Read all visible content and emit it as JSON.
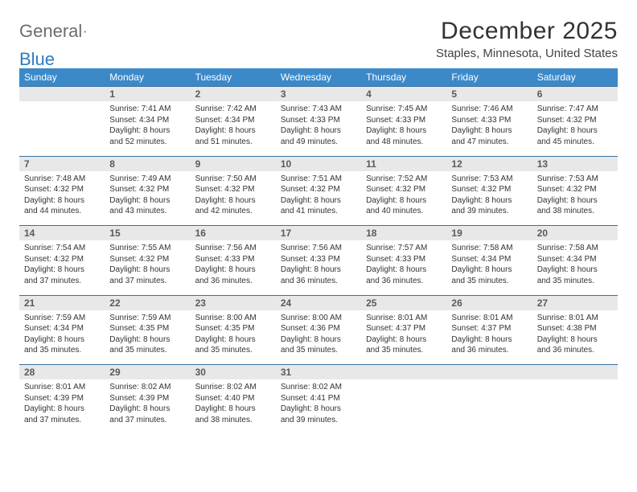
{
  "brand": {
    "word1": "General",
    "word2": "Blue"
  },
  "title": "December 2025",
  "location": "Staples, Minnesota, United States",
  "colors": {
    "header_bg": "#3b89c9",
    "daynum_bg": "#e8e8e8",
    "rule": "#3b6fa0"
  },
  "dow": [
    "Sunday",
    "Monday",
    "Tuesday",
    "Wednesday",
    "Thursday",
    "Friday",
    "Saturday"
  ],
  "weeks": [
    [
      null,
      {
        "n": "1",
        "sr": "Sunrise: 7:41 AM",
        "ss": "Sunset: 4:34 PM",
        "dl": "Daylight: 8 hours and 52 minutes."
      },
      {
        "n": "2",
        "sr": "Sunrise: 7:42 AM",
        "ss": "Sunset: 4:34 PM",
        "dl": "Daylight: 8 hours and 51 minutes."
      },
      {
        "n": "3",
        "sr": "Sunrise: 7:43 AM",
        "ss": "Sunset: 4:33 PM",
        "dl": "Daylight: 8 hours and 49 minutes."
      },
      {
        "n": "4",
        "sr": "Sunrise: 7:45 AM",
        "ss": "Sunset: 4:33 PM",
        "dl": "Daylight: 8 hours and 48 minutes."
      },
      {
        "n": "5",
        "sr": "Sunrise: 7:46 AM",
        "ss": "Sunset: 4:33 PM",
        "dl": "Daylight: 8 hours and 47 minutes."
      },
      {
        "n": "6",
        "sr": "Sunrise: 7:47 AM",
        "ss": "Sunset: 4:32 PM",
        "dl": "Daylight: 8 hours and 45 minutes."
      }
    ],
    [
      {
        "n": "7",
        "sr": "Sunrise: 7:48 AM",
        "ss": "Sunset: 4:32 PM",
        "dl": "Daylight: 8 hours and 44 minutes."
      },
      {
        "n": "8",
        "sr": "Sunrise: 7:49 AM",
        "ss": "Sunset: 4:32 PM",
        "dl": "Daylight: 8 hours and 43 minutes."
      },
      {
        "n": "9",
        "sr": "Sunrise: 7:50 AM",
        "ss": "Sunset: 4:32 PM",
        "dl": "Daylight: 8 hours and 42 minutes."
      },
      {
        "n": "10",
        "sr": "Sunrise: 7:51 AM",
        "ss": "Sunset: 4:32 PM",
        "dl": "Daylight: 8 hours and 41 minutes."
      },
      {
        "n": "11",
        "sr": "Sunrise: 7:52 AM",
        "ss": "Sunset: 4:32 PM",
        "dl": "Daylight: 8 hours and 40 minutes."
      },
      {
        "n": "12",
        "sr": "Sunrise: 7:53 AM",
        "ss": "Sunset: 4:32 PM",
        "dl": "Daylight: 8 hours and 39 minutes."
      },
      {
        "n": "13",
        "sr": "Sunrise: 7:53 AM",
        "ss": "Sunset: 4:32 PM",
        "dl": "Daylight: 8 hours and 38 minutes."
      }
    ],
    [
      {
        "n": "14",
        "sr": "Sunrise: 7:54 AM",
        "ss": "Sunset: 4:32 PM",
        "dl": "Daylight: 8 hours and 37 minutes."
      },
      {
        "n": "15",
        "sr": "Sunrise: 7:55 AM",
        "ss": "Sunset: 4:32 PM",
        "dl": "Daylight: 8 hours and 37 minutes."
      },
      {
        "n": "16",
        "sr": "Sunrise: 7:56 AM",
        "ss": "Sunset: 4:33 PM",
        "dl": "Daylight: 8 hours and 36 minutes."
      },
      {
        "n": "17",
        "sr": "Sunrise: 7:56 AM",
        "ss": "Sunset: 4:33 PM",
        "dl": "Daylight: 8 hours and 36 minutes."
      },
      {
        "n": "18",
        "sr": "Sunrise: 7:57 AM",
        "ss": "Sunset: 4:33 PM",
        "dl": "Daylight: 8 hours and 36 minutes."
      },
      {
        "n": "19",
        "sr": "Sunrise: 7:58 AM",
        "ss": "Sunset: 4:34 PM",
        "dl": "Daylight: 8 hours and 35 minutes."
      },
      {
        "n": "20",
        "sr": "Sunrise: 7:58 AM",
        "ss": "Sunset: 4:34 PM",
        "dl": "Daylight: 8 hours and 35 minutes."
      }
    ],
    [
      {
        "n": "21",
        "sr": "Sunrise: 7:59 AM",
        "ss": "Sunset: 4:34 PM",
        "dl": "Daylight: 8 hours and 35 minutes."
      },
      {
        "n": "22",
        "sr": "Sunrise: 7:59 AM",
        "ss": "Sunset: 4:35 PM",
        "dl": "Daylight: 8 hours and 35 minutes."
      },
      {
        "n": "23",
        "sr": "Sunrise: 8:00 AM",
        "ss": "Sunset: 4:35 PM",
        "dl": "Daylight: 8 hours and 35 minutes."
      },
      {
        "n": "24",
        "sr": "Sunrise: 8:00 AM",
        "ss": "Sunset: 4:36 PM",
        "dl": "Daylight: 8 hours and 35 minutes."
      },
      {
        "n": "25",
        "sr": "Sunrise: 8:01 AM",
        "ss": "Sunset: 4:37 PM",
        "dl": "Daylight: 8 hours and 35 minutes."
      },
      {
        "n": "26",
        "sr": "Sunrise: 8:01 AM",
        "ss": "Sunset: 4:37 PM",
        "dl": "Daylight: 8 hours and 36 minutes."
      },
      {
        "n": "27",
        "sr": "Sunrise: 8:01 AM",
        "ss": "Sunset: 4:38 PM",
        "dl": "Daylight: 8 hours and 36 minutes."
      }
    ],
    [
      {
        "n": "28",
        "sr": "Sunrise: 8:01 AM",
        "ss": "Sunset: 4:39 PM",
        "dl": "Daylight: 8 hours and 37 minutes."
      },
      {
        "n": "29",
        "sr": "Sunrise: 8:02 AM",
        "ss": "Sunset: 4:39 PM",
        "dl": "Daylight: 8 hours and 37 minutes."
      },
      {
        "n": "30",
        "sr": "Sunrise: 8:02 AM",
        "ss": "Sunset: 4:40 PM",
        "dl": "Daylight: 8 hours and 38 minutes."
      },
      {
        "n": "31",
        "sr": "Sunrise: 8:02 AM",
        "ss": "Sunset: 4:41 PM",
        "dl": "Daylight: 8 hours and 39 minutes."
      },
      null,
      null,
      null
    ]
  ]
}
